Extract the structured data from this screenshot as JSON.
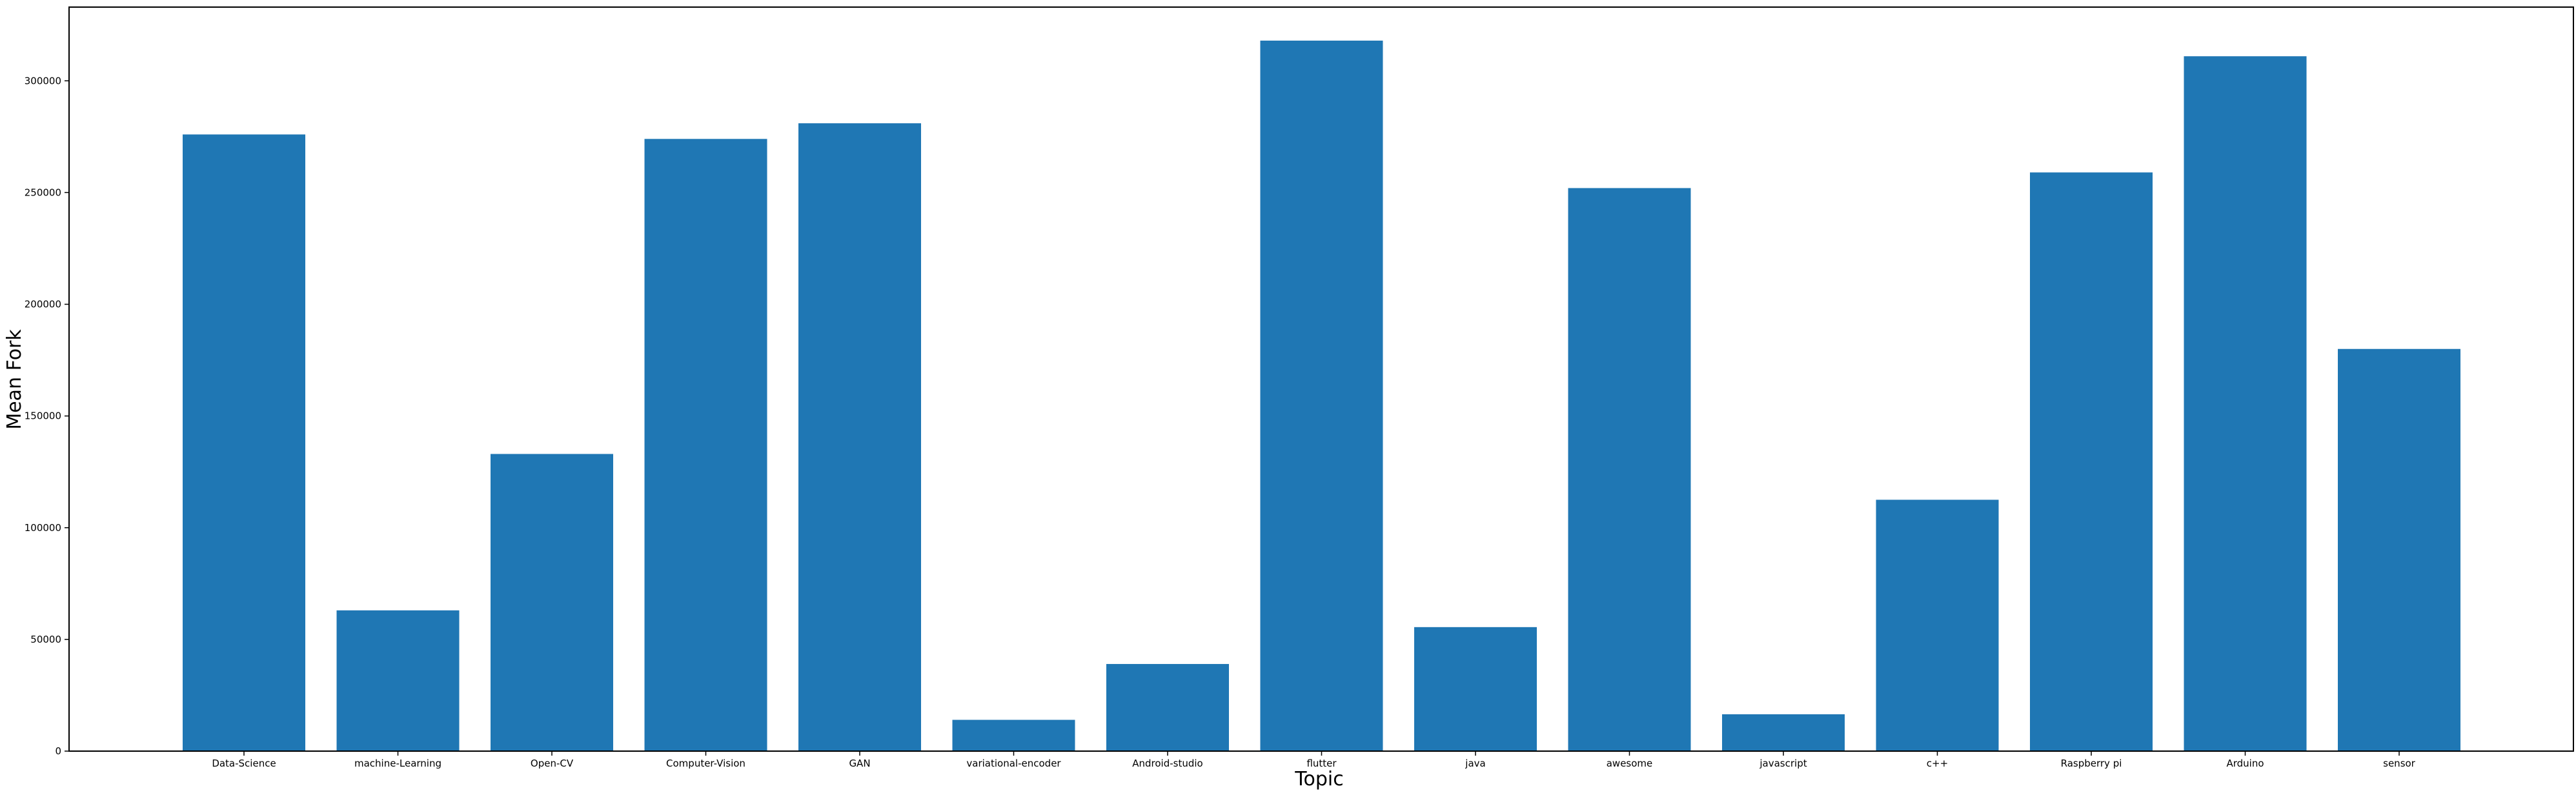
{
  "chart_data": {
    "type": "bar",
    "title": "",
    "xlabel": "Topic",
    "ylabel": "Mean Fork",
    "categories": [
      "Data-Science",
      "machine-Learning",
      "Open-CV",
      "Computer-Vision",
      "GAN",
      "variational-encoder",
      "Android-studio",
      "flutter",
      "java",
      "awesome",
      "javascript",
      "c++",
      "Raspberry pi",
      "Arduino",
      "sensor"
    ],
    "values": [
      276000,
      63000,
      133000,
      274000,
      281000,
      14000,
      39000,
      318000,
      55500,
      252000,
      16500,
      112500,
      259000,
      311000,
      180000
    ],
    "ylim": [
      0,
      333000
    ],
    "yticks": [
      0,
      50000,
      100000,
      150000,
      200000,
      250000,
      300000
    ],
    "ytick_labels": [
      "0",
      "50000",
      "100000",
      "150000",
      "200000",
      "250000",
      "300000"
    ],
    "bar_color": "#1f77b4",
    "grid": false,
    "legend": "none"
  }
}
